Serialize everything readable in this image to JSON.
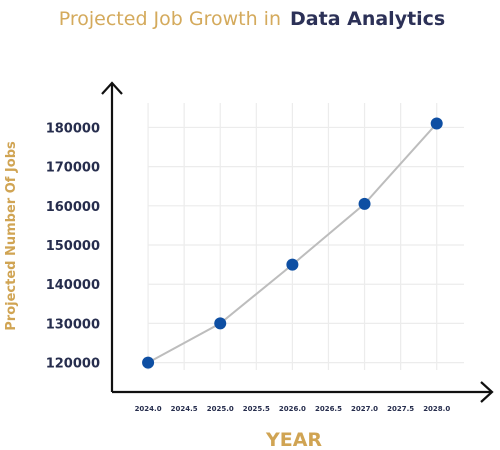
{
  "chart_data": {
    "type": "line",
    "title_part1": "Projected Job Growth in",
    "title_part2": "Data Analytics",
    "xlabel": "YEAR",
    "ylabel": "Projected Number Of Jobs",
    "x": [
      2024.0,
      2025.0,
      2026.0,
      2027.0,
      2028.0
    ],
    "series": [
      {
        "values": [
          120000,
          130000,
          145000,
          160500,
          181000
        ]
      }
    ],
    "xticks": [
      "2024.0",
      "2024.5",
      "2025.0",
      "2025.5",
      "2026.0",
      "2026.5",
      "2027.0",
      "2027.5",
      "2028.0"
    ],
    "yticks": [
      "120000",
      "130000",
      "140000",
      "150000",
      "160000",
      "170000",
      "180000"
    ],
    "xlim": [
      2023.5,
      2028.6
    ],
    "ylim": [
      112500,
      187000
    ],
    "grid": true,
    "legend": "none",
    "colors": {
      "title_gold": "#d4aa5c",
      "title_navy": "#2c3157",
      "axis_label_gold": "#d0a453",
      "tick_label": "#262d4d",
      "marker": "#0e4fa3",
      "line": "#bdbdbd",
      "grid": "#ececec",
      "axis": "#111111"
    }
  }
}
